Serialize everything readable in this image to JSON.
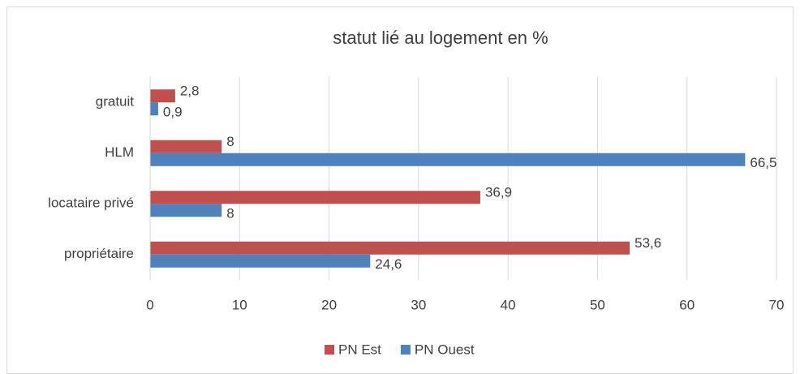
{
  "chart_data": {
    "type": "bar",
    "orientation": "horizontal",
    "title": "statut lié au logement en %",
    "categories": [
      "gratuit",
      "HLM",
      "locataire privé",
      "propriétaire"
    ],
    "series": [
      {
        "name": "PN Est",
        "color": "#c0504d",
        "values": [
          2.8,
          8,
          36.9,
          53.6
        ],
        "value_labels": [
          "2,8",
          "8",
          "36,9",
          "53,6"
        ]
      },
      {
        "name": "PN Ouest",
        "color": "#4f81bd",
        "values": [
          0.9,
          66.5,
          8,
          24.6
        ],
        "value_labels": [
          "0,9",
          "66,5",
          "8",
          "24,6"
        ]
      }
    ],
    "xlim": [
      0,
      70
    ],
    "xticks": [
      0,
      10,
      20,
      30,
      40,
      50,
      60,
      70
    ],
    "grid": true,
    "legend": "bottom"
  }
}
